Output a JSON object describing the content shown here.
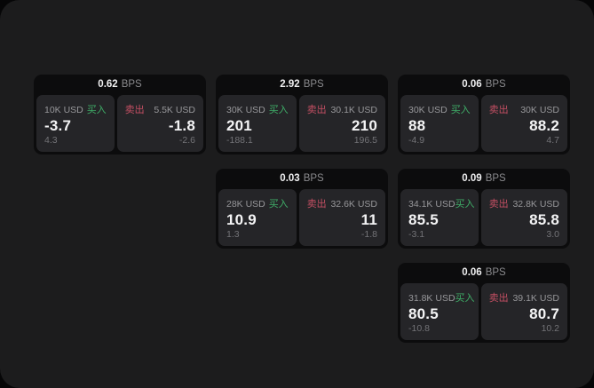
{
  "labels": {
    "bps_suffix": "BPS",
    "buy": "买入",
    "sell": "卖出"
  },
  "colors": {
    "buy_green": "#3fae68",
    "sell_red": "#c44f63",
    "value_white": "#f4f4f5",
    "secondary_gray": "#97979a",
    "delta_gray": "#737377",
    "panel_bg": "#252528",
    "card_bg": "#0c0c0d",
    "page_bg": "#1c1c1d"
  },
  "cards": [
    {
      "bps": "0.62",
      "buy": {
        "notional": "10K USD",
        "value": "-3.7",
        "delta": "4.3"
      },
      "sell": {
        "notional": "5.5K USD",
        "value": "-1.8",
        "delta": "-2.6"
      }
    },
    {
      "bps": "2.92",
      "buy": {
        "notional": "30K USD",
        "value": "201",
        "delta": "-188.1"
      },
      "sell": {
        "notional": "30.1K USD",
        "value": "210",
        "delta": "196.5"
      }
    },
    {
      "bps": "0.06",
      "buy": {
        "notional": "30K USD",
        "value": "88",
        "delta": "-4.9"
      },
      "sell": {
        "notional": "30K USD",
        "value": "88.2",
        "delta": "4.7"
      }
    },
    {
      "bps": "0.03",
      "buy": {
        "notional": "28K USD",
        "value": "10.9",
        "delta": "1.3"
      },
      "sell": {
        "notional": "32.6K USD",
        "value": "11",
        "delta": "-1.8"
      }
    },
    {
      "bps": "0.09",
      "buy": {
        "notional": "34.1K USD",
        "value": "85.5",
        "delta": "-3.1"
      },
      "sell": {
        "notional": "32.8K USD",
        "value": "85.8",
        "delta": "3.0"
      }
    },
    {
      "bps": "0.06",
      "buy": {
        "notional": "31.8K USD",
        "value": "80.5",
        "delta": "-10.8"
      },
      "sell": {
        "notional": "39.1K USD",
        "value": "80.7",
        "delta": "10.2"
      }
    }
  ]
}
